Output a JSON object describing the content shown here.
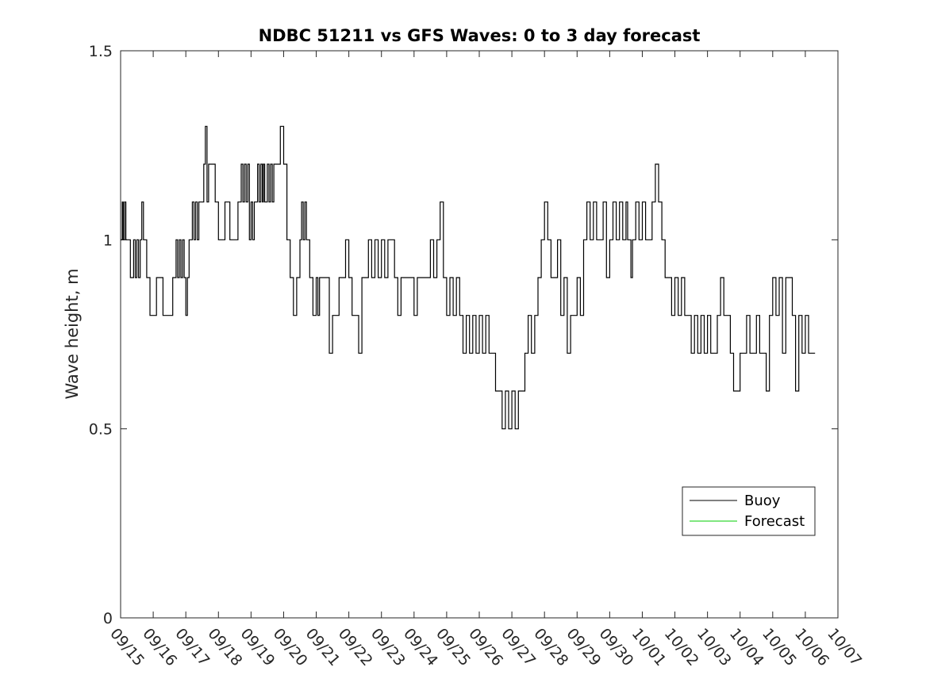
{
  "chart_data": {
    "type": "line",
    "title": "NDBC 51211 vs GFS Waves: 0 to 3 day forecast",
    "xlabel": "",
    "ylabel": "Wave height, m",
    "ylim": [
      0,
      1.5
    ],
    "yticks": [
      0,
      0.5,
      1,
      1.5
    ],
    "ytick_labels": [
      "0",
      "0.5",
      "1",
      "1.5"
    ],
    "xlim_days": [
      0,
      22
    ],
    "xtick_labels": [
      "09/15",
      "09/16",
      "09/17",
      "09/18",
      "09/19",
      "09/20",
      "09/21",
      "09/22",
      "09/23",
      "09/24",
      "09/25",
      "09/26",
      "09/27",
      "09/28",
      "09/29",
      "09/30",
      "10/01",
      "10/02",
      "10/03",
      "10/04",
      "10/05",
      "10/06",
      "10/07"
    ],
    "legend": {
      "location": "right",
      "entries": [
        "Buoy",
        "Forecast"
      ]
    },
    "series": [
      {
        "name": "Buoy",
        "color": "#000000",
        "x_days": [
          0.0,
          0.05,
          0.08,
          0.12,
          0.16,
          0.2,
          0.3,
          0.4,
          0.45,
          0.5,
          0.55,
          0.6,
          0.65,
          0.7,
          0.8,
          0.9,
          1.0,
          1.1,
          1.2,
          1.3,
          1.4,
          1.5,
          1.6,
          1.7,
          1.75,
          1.8,
          1.85,
          1.9,
          1.95,
          2.0,
          2.05,
          2.1,
          2.15,
          2.2,
          2.25,
          2.3,
          2.35,
          2.4,
          2.45,
          2.5,
          2.55,
          2.6,
          2.65,
          2.7,
          2.8,
          2.9,
          3.0,
          3.1,
          3.2,
          3.25,
          3.3,
          3.35,
          3.4,
          3.45,
          3.5,
          3.55,
          3.6,
          3.65,
          3.7,
          3.75,
          3.8,
          3.85,
          3.9,
          3.95,
          4.0,
          4.05,
          4.1,
          4.15,
          4.2,
          4.25,
          4.3,
          4.35,
          4.38,
          4.42,
          4.5,
          4.55,
          4.6,
          4.65,
          4.7,
          4.8,
          4.9,
          5.0,
          5.1,
          5.2,
          5.3,
          5.4,
          5.5,
          5.55,
          5.6,
          5.65,
          5.7,
          5.8,
          5.9,
          6.0,
          6.05,
          6.1,
          6.2,
          6.3,
          6.4,
          6.5,
          6.6,
          6.7,
          6.8,
          6.9,
          7.0,
          7.1,
          7.2,
          7.3,
          7.4,
          7.5,
          7.6,
          7.7,
          7.8,
          7.9,
          8.0,
          8.1,
          8.2,
          8.3,
          8.4,
          8.5,
          8.6,
          8.7,
          8.8,
          8.9,
          9.0,
          9.1,
          9.2,
          9.3,
          9.4,
          9.5,
          9.6,
          9.7,
          9.8,
          9.9,
          10.0,
          10.1,
          10.2,
          10.3,
          10.4,
          10.5,
          10.6,
          10.7,
          10.8,
          10.9,
          11.0,
          11.1,
          11.2,
          11.3,
          11.4,
          11.5,
          11.6,
          11.7,
          11.8,
          11.9,
          12.0,
          12.1,
          12.2,
          12.3,
          12.4,
          12.5,
          12.6,
          12.7,
          12.8,
          12.9,
          13.0,
          13.1,
          13.2,
          13.3,
          13.4,
          13.5,
          13.6,
          13.7,
          13.8,
          13.9,
          14.0,
          14.1,
          14.2,
          14.3,
          14.4,
          14.5,
          14.6,
          14.7,
          14.8,
          14.9,
          15.0,
          15.1,
          15.2,
          15.3,
          15.4,
          15.5,
          15.55,
          15.6,
          15.65,
          15.7,
          15.8,
          15.9,
          16.0,
          16.1,
          16.2,
          16.3,
          16.4,
          16.5,
          16.6,
          16.7,
          16.8,
          16.9,
          17.0,
          17.1,
          17.2,
          17.3,
          17.4,
          17.5,
          17.6,
          17.7,
          17.8,
          17.9,
          18.0,
          18.1,
          18.2,
          18.3,
          18.4,
          18.5,
          18.6,
          18.7,
          18.8,
          18.9,
          19.0,
          19.1,
          19.2,
          19.3,
          19.4,
          19.5,
          19.6,
          19.7,
          19.8,
          19.9,
          20.0,
          20.1,
          20.2,
          20.3,
          20.4,
          20.5,
          20.6,
          20.7,
          20.8,
          20.9,
          21.0,
          21.1,
          21.2,
          21.3
        ],
        "values": [
          1.0,
          1.1,
          1.0,
          1.1,
          1.0,
          1.0,
          0.9,
          1.0,
          0.9,
          1.0,
          0.9,
          1.0,
          1.1,
          1.0,
          0.9,
          0.8,
          0.8,
          0.9,
          0.9,
          0.8,
          0.8,
          0.8,
          0.9,
          1.0,
          0.9,
          1.0,
          0.9,
          1.0,
          0.9,
          0.8,
          0.9,
          1.0,
          1.0,
          1.1,
          1.0,
          1.1,
          1.0,
          1.1,
          1.1,
          1.1,
          1.2,
          1.3,
          1.1,
          1.2,
          1.2,
          1.1,
          1.0,
          1.0,
          1.1,
          1.1,
          1.1,
          1.0,
          1.0,
          1.0,
          1.0,
          1.0,
          1.1,
          1.1,
          1.2,
          1.1,
          1.2,
          1.1,
          1.2,
          1.0,
          1.1,
          1.0,
          1.1,
          1.1,
          1.2,
          1.1,
          1.2,
          1.1,
          1.2,
          1.1,
          1.2,
          1.1,
          1.2,
          1.1,
          1.2,
          1.2,
          1.3,
          1.2,
          1.0,
          0.9,
          0.8,
          0.9,
          1.0,
          1.1,
          1.0,
          1.1,
          1.0,
          0.9,
          0.8,
          0.9,
          0.8,
          0.9,
          0.9,
          0.9,
          0.7,
          0.8,
          0.8,
          0.9,
          0.9,
          1.0,
          0.9,
          0.8,
          0.8,
          0.7,
          0.9,
          0.9,
          1.0,
          0.9,
          1.0,
          0.9,
          1.0,
          0.9,
          1.0,
          1.0,
          0.9,
          0.8,
          0.9,
          0.9,
          0.9,
          0.9,
          0.8,
          0.9,
          0.9,
          0.9,
          0.9,
          1.0,
          0.9,
          1.0,
          1.1,
          0.9,
          0.8,
          0.9,
          0.8,
          0.9,
          0.8,
          0.7,
          0.8,
          0.7,
          0.8,
          0.7,
          0.8,
          0.7,
          0.8,
          0.7,
          0.7,
          0.6,
          0.6,
          0.5,
          0.6,
          0.5,
          0.6,
          0.5,
          0.6,
          0.6,
          0.7,
          0.8,
          0.7,
          0.8,
          0.9,
          1.0,
          1.1,
          1.0,
          0.9,
          0.9,
          1.0,
          0.8,
          0.9,
          0.7,
          0.8,
          0.8,
          0.9,
          0.8,
          1.0,
          1.1,
          1.0,
          1.1,
          1.0,
          1.0,
          1.1,
          0.9,
          1.0,
          1.1,
          1.0,
          1.1,
          1.0,
          1.1,
          1.0,
          1.0,
          0.9,
          1.0,
          1.1,
          1.0,
          1.1,
          1.0,
          1.0,
          1.1,
          1.2,
          1.1,
          1.0,
          0.9,
          0.9,
          0.8,
          0.9,
          0.8,
          0.9,
          0.8,
          0.8,
          0.7,
          0.8,
          0.7,
          0.8,
          0.7,
          0.8,
          0.7,
          0.7,
          0.8,
          0.9,
          0.8,
          0.8,
          0.7,
          0.6,
          0.6,
          0.7,
          0.7,
          0.8,
          0.7,
          0.7,
          0.8,
          0.7,
          0.7,
          0.6,
          0.8,
          0.9,
          0.8,
          0.9,
          0.7,
          0.9,
          0.9,
          0.8,
          0.6,
          0.8,
          0.7,
          0.8,
          0.7,
          0.7,
          0.7
        ]
      },
      {
        "name": "Forecast",
        "color": "#00cc00",
        "x_days": [],
        "values": []
      }
    ]
  }
}
